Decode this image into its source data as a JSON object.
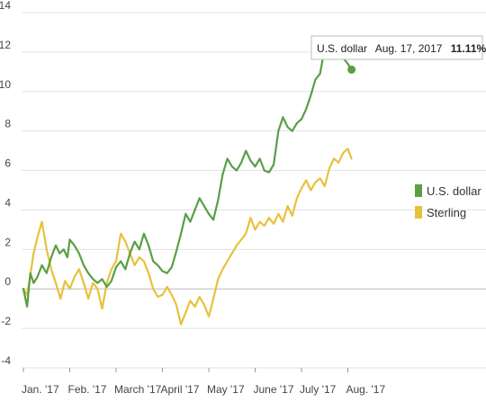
{
  "chart_data": {
    "type": "line",
    "title": "",
    "xlabel": "",
    "ylabel": "",
    "ylim": [
      -4,
      14
    ],
    "yticks": [
      14,
      12,
      10,
      8,
      6,
      4,
      2,
      0,
      -2,
      -4
    ],
    "yticks_labels": [
      "14",
      "12",
      "10",
      "8",
      "6",
      "4",
      "2",
      "0",
      "-2",
      "-4"
    ],
    "xlim": [
      0,
      8
    ],
    "month_labels": [
      "Jan. '17",
      "Feb. '17",
      "March '17",
      "April '17",
      "May '17",
      "June '17",
      "July '17",
      "Aug. '17"
    ],
    "grid": true,
    "legend_position": "right",
    "series": [
      {
        "name": "U.S. dollar",
        "color": "#5a9e45",
        "points": [
          [
            0.0,
            0.0
          ],
          [
            0.08,
            -0.9
          ],
          [
            0.15,
            0.8
          ],
          [
            0.22,
            0.3
          ],
          [
            0.3,
            0.6
          ],
          [
            0.4,
            1.2
          ],
          [
            0.5,
            0.8
          ],
          [
            0.6,
            1.6
          ],
          [
            0.7,
            2.2
          ],
          [
            0.78,
            1.8
          ],
          [
            0.87,
            2.0
          ],
          [
            0.95,
            1.6
          ],
          [
            1.0,
            2.5
          ],
          [
            1.1,
            2.2
          ],
          [
            1.2,
            1.8
          ],
          [
            1.3,
            1.2
          ],
          [
            1.4,
            0.8
          ],
          [
            1.5,
            0.5
          ],
          [
            1.6,
            0.3
          ],
          [
            1.7,
            0.5
          ],
          [
            1.8,
            0.1
          ],
          [
            1.9,
            0.4
          ],
          [
            2.0,
            1.1
          ],
          [
            2.1,
            1.4
          ],
          [
            2.2,
            1.0
          ],
          [
            2.3,
            1.8
          ],
          [
            2.4,
            2.4
          ],
          [
            2.5,
            2.0
          ],
          [
            2.6,
            2.8
          ],
          [
            2.7,
            2.2
          ],
          [
            2.8,
            1.4
          ],
          [
            2.9,
            1.2
          ],
          [
            3.0,
            0.9
          ],
          [
            3.1,
            0.8
          ],
          [
            3.2,
            1.1
          ],
          [
            3.3,
            1.9
          ],
          [
            3.4,
            2.8
          ],
          [
            3.5,
            3.8
          ],
          [
            3.6,
            3.4
          ],
          [
            3.7,
            4.0
          ],
          [
            3.8,
            4.6
          ],
          [
            3.9,
            4.2
          ],
          [
            4.0,
            3.8
          ],
          [
            4.1,
            3.5
          ],
          [
            4.2,
            4.5
          ],
          [
            4.3,
            5.8
          ],
          [
            4.4,
            6.6
          ],
          [
            4.5,
            6.2
          ],
          [
            4.6,
            6.0
          ],
          [
            4.7,
            6.4
          ],
          [
            4.8,
            7.0
          ],
          [
            4.9,
            6.5
          ],
          [
            5.0,
            6.2
          ],
          [
            5.1,
            6.6
          ],
          [
            5.2,
            6.0
          ],
          [
            5.3,
            5.9
          ],
          [
            5.4,
            6.3
          ],
          [
            5.5,
            8.0
          ],
          [
            5.6,
            8.7
          ],
          [
            5.7,
            8.2
          ],
          [
            5.8,
            8.0
          ],
          [
            5.9,
            8.4
          ],
          [
            6.0,
            8.6
          ],
          [
            6.1,
            9.1
          ],
          [
            6.2,
            9.8
          ],
          [
            6.3,
            10.6
          ],
          [
            6.4,
            10.9
          ],
          [
            6.5,
            12.2
          ],
          [
            6.6,
            12.6
          ],
          [
            6.7,
            12.0
          ],
          [
            6.8,
            12.1
          ],
          [
            6.9,
            11.7
          ],
          [
            7.0,
            11.4
          ],
          [
            7.08,
            11.11
          ]
        ]
      },
      {
        "name": "Sterling",
        "color": "#e8c13c",
        "points": [
          [
            0.0,
            0.0
          ],
          [
            0.08,
            -0.3
          ],
          [
            0.15,
            0.7
          ],
          [
            0.22,
            1.8
          ],
          [
            0.3,
            2.6
          ],
          [
            0.4,
            3.4
          ],
          [
            0.5,
            2.0
          ],
          [
            0.6,
            1.0
          ],
          [
            0.7,
            0.3
          ],
          [
            0.8,
            -0.5
          ],
          [
            0.9,
            0.4
          ],
          [
            1.0,
            0.0
          ],
          [
            1.1,
            0.6
          ],
          [
            1.2,
            1.0
          ],
          [
            1.3,
            0.3
          ],
          [
            1.4,
            -0.5
          ],
          [
            1.5,
            0.3
          ],
          [
            1.6,
            0.0
          ],
          [
            1.7,
            -1.0
          ],
          [
            1.8,
            0.3
          ],
          [
            1.9,
            1.0
          ],
          [
            2.0,
            1.4
          ],
          [
            2.1,
            2.8
          ],
          [
            2.2,
            2.4
          ],
          [
            2.3,
            1.8
          ],
          [
            2.4,
            1.2
          ],
          [
            2.5,
            1.6
          ],
          [
            2.6,
            1.4
          ],
          [
            2.7,
            0.8
          ],
          [
            2.8,
            0.0
          ],
          [
            2.9,
            -0.4
          ],
          [
            3.0,
            -0.3
          ],
          [
            3.1,
            0.1
          ],
          [
            3.2,
            -0.3
          ],
          [
            3.3,
            -0.8
          ],
          [
            3.4,
            -1.8
          ],
          [
            3.5,
            -1.2
          ],
          [
            3.6,
            -0.6
          ],
          [
            3.7,
            -0.9
          ],
          [
            3.8,
            -0.4
          ],
          [
            3.9,
            -0.8
          ],
          [
            4.0,
            -1.4
          ],
          [
            4.1,
            -0.5
          ],
          [
            4.2,
            0.5
          ],
          [
            4.3,
            1.0
          ],
          [
            4.4,
            1.4
          ],
          [
            4.5,
            1.8
          ],
          [
            4.6,
            2.2
          ],
          [
            4.7,
            2.5
          ],
          [
            4.8,
            2.8
          ],
          [
            4.9,
            3.6
          ],
          [
            5.0,
            3.0
          ],
          [
            5.1,
            3.4
          ],
          [
            5.2,
            3.2
          ],
          [
            5.3,
            3.6
          ],
          [
            5.4,
            3.3
          ],
          [
            5.5,
            3.8
          ],
          [
            5.6,
            3.4
          ],
          [
            5.7,
            4.2
          ],
          [
            5.8,
            3.7
          ],
          [
            5.9,
            4.6
          ],
          [
            6.0,
            5.1
          ],
          [
            6.1,
            5.5
          ],
          [
            6.2,
            5.0
          ],
          [
            6.3,
            5.4
          ],
          [
            6.4,
            5.6
          ],
          [
            6.5,
            5.2
          ],
          [
            6.6,
            6.1
          ],
          [
            6.7,
            6.6
          ],
          [
            6.8,
            6.4
          ],
          [
            6.9,
            6.9
          ],
          [
            7.0,
            7.1
          ],
          [
            7.08,
            6.6
          ]
        ]
      }
    ],
    "tooltip": {
      "series": "U.S. dollar",
      "date": "Aug. 17, 2017",
      "value": "11.11%",
      "x": 7.08,
      "y": 11.11
    }
  }
}
